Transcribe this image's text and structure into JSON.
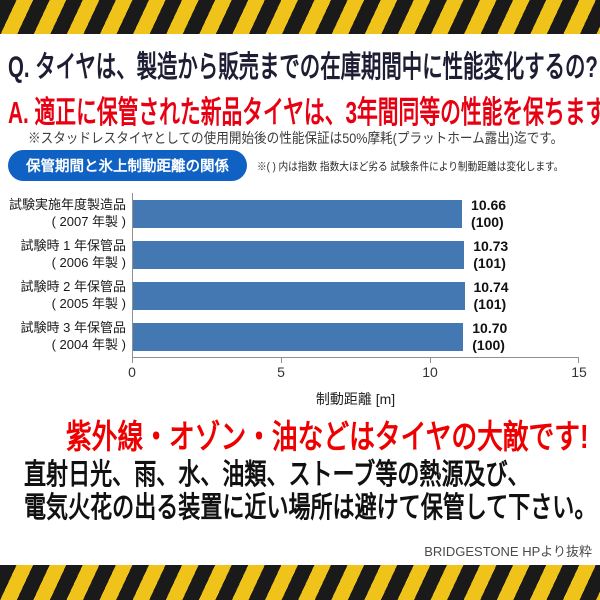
{
  "qa": {
    "question": "Q. タイヤは、製造から販売までの在庫期間中に性能変化するの?",
    "answer": "A. 適正に保管された新品タイヤは、3年間同等の性能を保ちます。",
    "note": "※スタッドレスタイヤとしての使用開始後の性能保証は50%摩耗(プラットホーム露出)迄です。"
  },
  "chart_header": {
    "badge": "保管期間と氷上制動距離の関係",
    "note": "※( ) 内は指数 指数大ほど劣る 試験条件により制動距離は変化します。"
  },
  "chart_data": {
    "type": "bar",
    "orientation": "horizontal",
    "title": "保管期間と氷上制動距離の関係",
    "xlabel": "制動距離 [m]",
    "xlim": [
      0,
      15
    ],
    "xticks": [
      0,
      5,
      10,
      15
    ],
    "grid": false,
    "bar_color": "#4478b3",
    "rows": [
      {
        "label_line1": "試験実施年度製造品",
        "label_line2": "( 2007 年製 )",
        "value": 10.66,
        "value_label": "10.66",
        "index_label": "(100)"
      },
      {
        "label_line1": "試験時 1 年保管品",
        "label_line2": "( 2006 年製 )",
        "value": 10.73,
        "value_label": "10.73",
        "index_label": "(101)"
      },
      {
        "label_line1": "試験時 2 年保管品",
        "label_line2": "( 2005 年製 )",
        "value": 10.74,
        "value_label": "10.74",
        "index_label": "(101)"
      },
      {
        "label_line1": "試験時 3 年保管品",
        "label_line2": "( 2004 年製 )",
        "value": 10.7,
        "value_label": "10.70",
        "index_label": "(100)"
      }
    ]
  },
  "warning": {
    "headline": "紫外線・オゾン・油などはタイヤの大敵です!",
    "body_line1": "直射日光、雨、水、油類、ストーブ等の熱源及び、",
    "body_line2": "電気火花の出る装置に近い場所は避けて保管して下さい。",
    "credit": "BRIDGESTONE HPより抜粋"
  },
  "colors": {
    "stripe_yellow": "#efc319",
    "stripe_black": "#1a1a1a",
    "badge_blue": "#0f62c4",
    "bar_blue": "#4478b3",
    "accent_red": "#ee0000",
    "answer_red": "#e60012",
    "question_dark": "#1d1d33"
  }
}
